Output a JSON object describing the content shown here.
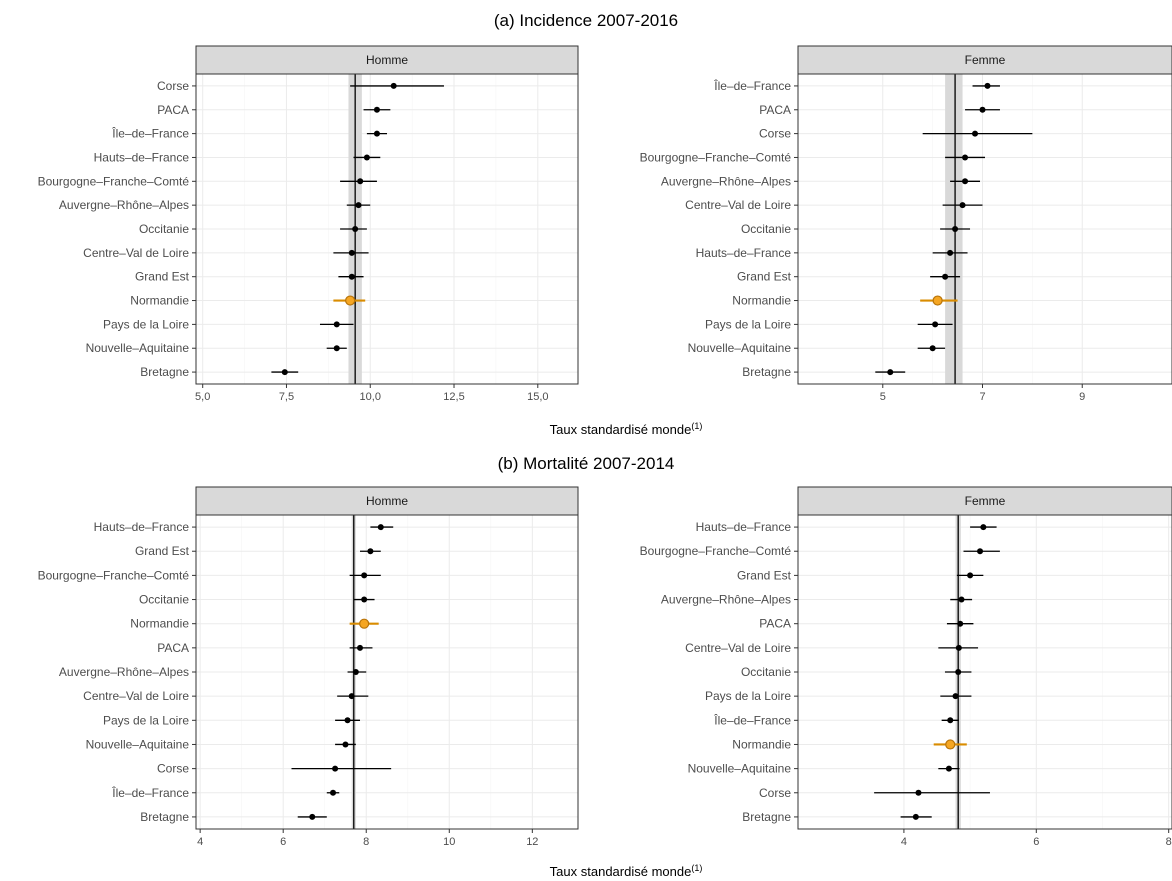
{
  "sections": [
    {
      "title": "(a) Incidence 2007-2016",
      "xlabel_main": "Taux standardisé monde",
      "xlabel_sup": "(1)"
    },
    {
      "title": "(b) Mortalité 2007-2014",
      "xlabel_main": "Taux standardisé monde",
      "xlabel_sup": "(1)"
    }
  ],
  "colors": {
    "highlight_fill": "#f5a623",
    "highlight_stroke": "#b8740a",
    "highlight_line": "#d98c00",
    "point": "#000000",
    "ref_band": "#d9d9d9",
    "strip": "#d9d9d9",
    "grid_major": "#ebebeb",
    "grid_minor": "#f5f5f5"
  },
  "chart_data": [
    {
      "type": "scatter",
      "section": 0,
      "panel": "Homme",
      "xlim": [
        4.8,
        16.2
      ],
      "xticks": [
        5,
        7.5,
        10,
        12.5,
        15
      ],
      "xtick_labels": [
        "5,0",
        "7,5",
        "10,0",
        "12,5",
        "15,0"
      ],
      "reference": {
        "value": 9.55,
        "lower": 9.35,
        "upper": 9.75
      },
      "highlight": "Normandie",
      "points": [
        {
          "label": "Corse",
          "value": 10.7,
          "lower": 9.4,
          "upper": 12.2
        },
        {
          "label": "PACA",
          "value": 10.2,
          "lower": 9.8,
          "upper": 10.6
        },
        {
          "label": "Île–de–France",
          "value": 10.2,
          "lower": 9.9,
          "upper": 10.5
        },
        {
          "label": "Hauts–de–France",
          "value": 9.9,
          "lower": 9.5,
          "upper": 10.3
        },
        {
          "label": "Bourgogne–Franche–Comté",
          "value": 9.7,
          "lower": 9.1,
          "upper": 10.2
        },
        {
          "label": "Auvergne–Rhône–Alpes",
          "value": 9.65,
          "lower": 9.3,
          "upper": 10.0
        },
        {
          "label": "Occitanie",
          "value": 9.55,
          "lower": 9.1,
          "upper": 9.9
        },
        {
          "label": "Centre–Val de Loire",
          "value": 9.45,
          "lower": 8.9,
          "upper": 9.95
        },
        {
          "label": "Grand Est",
          "value": 9.45,
          "lower": 9.05,
          "upper": 9.8
        },
        {
          "label": "Normandie",
          "value": 9.4,
          "lower": 8.9,
          "upper": 9.85
        },
        {
          "label": "Pays de la Loire",
          "value": 9.0,
          "lower": 8.5,
          "upper": 9.5
        },
        {
          "label": "Nouvelle–Aquitaine",
          "value": 9.0,
          "lower": 8.7,
          "upper": 9.3
        },
        {
          "label": "Bretagne",
          "value": 7.45,
          "lower": 7.05,
          "upper": 7.85
        }
      ]
    },
    {
      "type": "scatter",
      "section": 0,
      "panel": "Femme",
      "xlim": [
        3.3,
        10.8
      ],
      "xticks": [
        5,
        7,
        9
      ],
      "xtick_labels": [
        "5",
        "7",
        "9"
      ],
      "reference": {
        "value": 6.45,
        "lower": 6.25,
        "upper": 6.6
      },
      "highlight": "Normandie",
      "points": [
        {
          "label": "Île–de–France",
          "value": 7.1,
          "lower": 6.8,
          "upper": 7.35
        },
        {
          "label": "PACA",
          "value": 7.0,
          "lower": 6.65,
          "upper": 7.35
        },
        {
          "label": "Corse",
          "value": 6.85,
          "lower": 5.8,
          "upper": 8.0
        },
        {
          "label": "Bourgogne–Franche–Comté",
          "value": 6.65,
          "lower": 6.25,
          "upper": 7.05
        },
        {
          "label": "Auvergne–Rhône–Alpes",
          "value": 6.65,
          "lower": 6.35,
          "upper": 6.95
        },
        {
          "label": "Centre–Val de Loire",
          "value": 6.6,
          "lower": 6.2,
          "upper": 7.0
        },
        {
          "label": "Occitanie",
          "value": 6.45,
          "lower": 6.15,
          "upper": 6.75
        },
        {
          "label": "Hauts–de–France",
          "value": 6.35,
          "lower": 6.0,
          "upper": 6.7
        },
        {
          "label": "Grand Est",
          "value": 6.25,
          "lower": 5.95,
          "upper": 6.55
        },
        {
          "label": "Normandie",
          "value": 6.1,
          "lower": 5.75,
          "upper": 6.5
        },
        {
          "label": "Pays de la Loire",
          "value": 6.05,
          "lower": 5.7,
          "upper": 6.4
        },
        {
          "label": "Nouvelle–Aquitaine",
          "value": 6.0,
          "lower": 5.7,
          "upper": 6.25
        },
        {
          "label": "Bretagne",
          "value": 5.15,
          "lower": 4.85,
          "upper": 5.45
        }
      ]
    },
    {
      "type": "scatter",
      "section": 1,
      "panel": "Homme",
      "xlim": [
        3.9,
        13.1
      ],
      "xticks": [
        4,
        6,
        8,
        10,
        12
      ],
      "xtick_labels": [
        "4",
        "6",
        "8",
        "10",
        "12"
      ],
      "reference": {
        "value": 7.7,
        "lower": 7.65,
        "upper": 7.75
      },
      "highlight": "Normandie",
      "points": [
        {
          "label": "Hauts–de–France",
          "value": 8.35,
          "lower": 8.1,
          "upper": 8.65
        },
        {
          "label": "Grand Est",
          "value": 8.1,
          "lower": 7.85,
          "upper": 8.35
        },
        {
          "label": "Bourgogne–Franche–Comté",
          "value": 7.95,
          "lower": 7.6,
          "upper": 8.35
        },
        {
          "label": "Occitanie",
          "value": 7.95,
          "lower": 7.7,
          "upper": 8.2
        },
        {
          "label": "Normandie",
          "value": 7.95,
          "lower": 7.6,
          "upper": 8.3
        },
        {
          "label": "PACA",
          "value": 7.85,
          "lower": 7.6,
          "upper": 8.15
        },
        {
          "label": "Auvergne–Rhône–Alpes",
          "value": 7.75,
          "lower": 7.55,
          "upper": 8.0
        },
        {
          "label": "Centre–Val de Loire",
          "value": 7.65,
          "lower": 7.3,
          "upper": 8.05
        },
        {
          "label": "Pays de la Loire",
          "value": 7.55,
          "lower": 7.25,
          "upper": 7.85
        },
        {
          "label": "Nouvelle–Aquitaine",
          "value": 7.5,
          "lower": 7.25,
          "upper": 7.75
        },
        {
          "label": "Corse",
          "value": 7.25,
          "lower": 6.2,
          "upper": 8.6
        },
        {
          "label": "Île–de–France",
          "value": 7.2,
          "lower": 7.05,
          "upper": 7.35
        },
        {
          "label": "Bretagne",
          "value": 6.7,
          "lower": 6.35,
          "upper": 7.05
        }
      ]
    },
    {
      "type": "scatter",
      "section": 1,
      "panel": "Femme",
      "xlim": [
        2.4,
        8.05
      ],
      "xticks": [
        4,
        6,
        8
      ],
      "xtick_labels": [
        "4",
        "6",
        "8"
      ],
      "reference": {
        "value": 4.82,
        "lower": 4.78,
        "upper": 4.86
      },
      "highlight": "Normandie",
      "points": [
        {
          "label": "Hauts–de–France",
          "value": 5.2,
          "lower": 5.0,
          "upper": 5.4
        },
        {
          "label": "Bourgogne–Franche–Comté",
          "value": 5.15,
          "lower": 4.9,
          "upper": 5.45
        },
        {
          "label": "Grand Est",
          "value": 5.0,
          "lower": 4.8,
          "upper": 5.2
        },
        {
          "label": "Auvergne–Rhône–Alpes",
          "value": 4.87,
          "lower": 4.7,
          "upper": 5.03
        },
        {
          "label": "PACA",
          "value": 4.85,
          "lower": 4.65,
          "upper": 5.05
        },
        {
          "label": "Centre–Val de Loire",
          "value": 4.83,
          "lower": 4.52,
          "upper": 5.12
        },
        {
          "label": "Occitanie",
          "value": 4.82,
          "lower": 4.62,
          "upper": 5.02
        },
        {
          "label": "Pays de la Loire",
          "value": 4.78,
          "lower": 4.55,
          "upper": 5.02
        },
        {
          "label": "Île–de–France",
          "value": 4.7,
          "lower": 4.57,
          "upper": 4.83
        },
        {
          "label": "Normandie",
          "value": 4.7,
          "lower": 4.45,
          "upper": 4.95
        },
        {
          "label": "Nouvelle–Aquitaine",
          "value": 4.68,
          "lower": 4.52,
          "upper": 4.84
        },
        {
          "label": "Corse",
          "value": 4.22,
          "lower": 3.55,
          "upper": 5.3
        },
        {
          "label": "Bretagne",
          "value": 4.18,
          "lower": 3.95,
          "upper": 4.42
        }
      ]
    }
  ]
}
